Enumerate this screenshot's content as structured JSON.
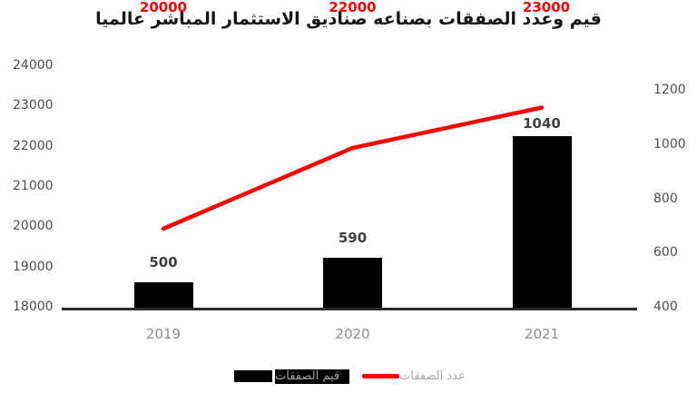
{
  "title": "قيم وعدد الصفقات بصناعه صناديق الاستثمار المباشر عالميا",
  "chart_data": {
    "type": "combo_bar_line",
    "title": "قيم وعدد الصفقات بصناعه صناديق الاستثمار المباشر عالميا",
    "categories": [
      "2019",
      "2020",
      "2021"
    ],
    "series": [
      {
        "name": "قيم الصفقات",
        "type": "bar",
        "axis": "right",
        "color": "#000000",
        "values": [
          500,
          590,
          1040
        ],
        "data_labels": [
          "500",
          "590",
          "1040"
        ],
        "label_color": "#404040"
      },
      {
        "name": "عدد الصفقات",
        "type": "line",
        "axis": "left",
        "color": "#fe0000",
        "values": [
          20000,
          22000,
          23000
        ],
        "data_labels": [
          "20000",
          "22000",
          "23000"
        ],
        "label_color": "#fe0000"
      }
    ],
    "left_axis": {
      "min": 18000,
      "max": 24000,
      "ticks": [
        24000,
        23000,
        22000,
        21000,
        20000,
        19000,
        18000
      ]
    },
    "right_axis": {
      "min": 400,
      "max": 1200,
      "ticks": [
        1200,
        1000,
        800,
        600,
        400
      ]
    },
    "grid": false,
    "legend_position": "bottom"
  },
  "legend": {
    "bar_label": "قيم الصفقات",
    "line_label": "عدد الصفقات"
  },
  "colors": {
    "bar": "#000000",
    "line": "#fe0000",
    "axis_line": "#2b2b2b",
    "tick_text": "#4d4d4d",
    "category_text": "#8c8c8c",
    "legend_text": "#a6a6a6",
    "title_text": "#141414"
  }
}
